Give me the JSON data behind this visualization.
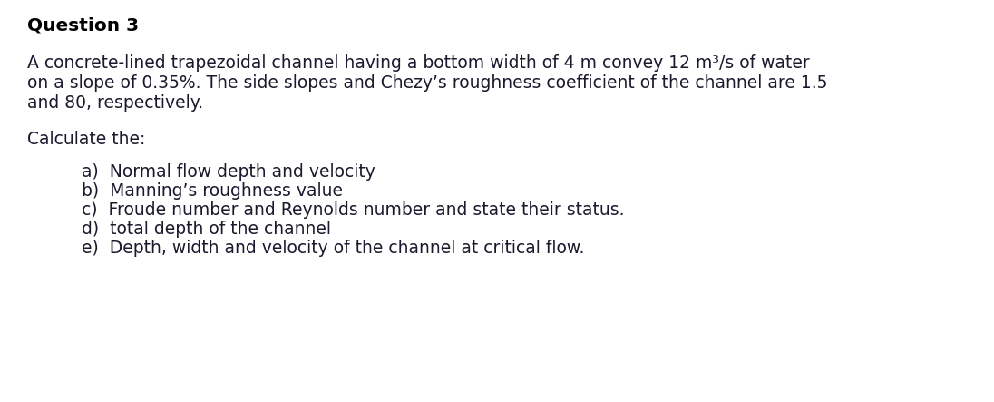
{
  "title": "Question 3",
  "para_line1": "A concrete-lined trapezoidal channel having a bottom width of 4 m convey 12 m³/s of water",
  "para_line2": "on a slope of 0.35%. The side slopes and Chezy’s roughness coefficient of the channel are 1.5",
  "para_line3": "and 80, respectively.",
  "intro": "Calculate the:",
  "items": [
    "a)  Normal flow depth and velocity",
    "b)  Manning’s roughness value",
    "c)  Froude number and Reynolds number and state their status.",
    "d)  total depth of the channel",
    "e)  Depth, width and velocity of the channel at critical flow."
  ],
  "bg_color": "#ffffff",
  "text_color": "#1a1a2e",
  "title_color": "#000000",
  "title_fontsize": 14.5,
  "body_fontsize": 13.5,
  "font_family": "DejaVu Sans"
}
